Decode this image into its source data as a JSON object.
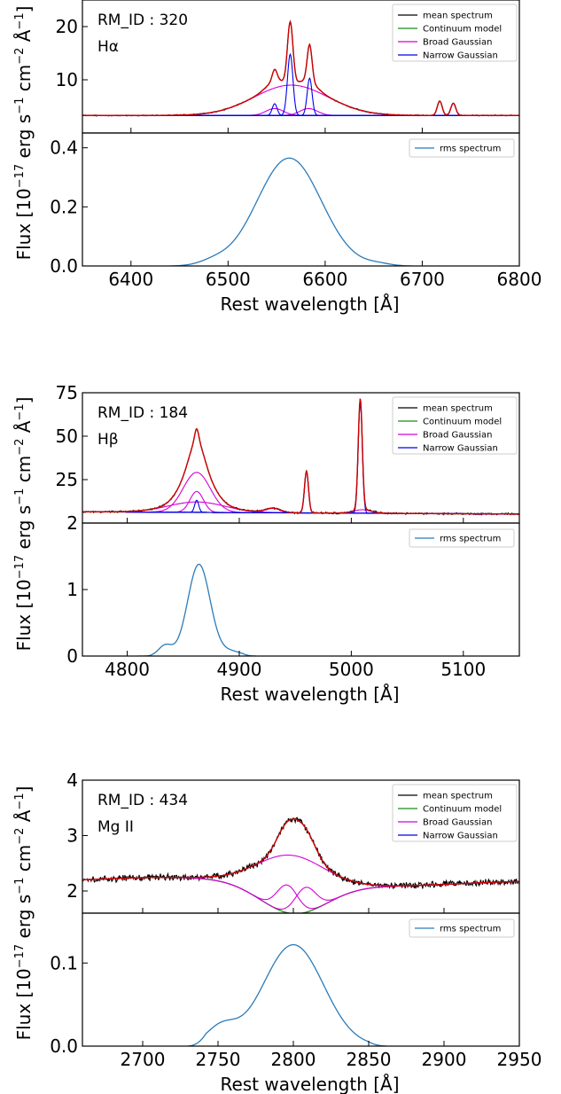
{
  "figure": {
    "ylabel": "Flux [10$^{-17}$ erg s$^{-1}$ cm$^{-2}$ Å$^{-1}$]",
    "ylabel_parts": [
      "Flux [10",
      "−17",
      " erg s",
      "−1",
      " cm",
      "−2",
      " Å",
      "−1",
      "]"
    ],
    "colors": {
      "mean": "#000000",
      "continuum": "#1a8a1a",
      "broad": "#d400d4",
      "narrow": "#0000ee",
      "total": "#cc0000",
      "rms": "#2b7bb9"
    }
  },
  "chart_data": [
    {
      "type": "line",
      "line": "Hα",
      "rm_id_label": "RM_ID : 320",
      "line_label": "Hα",
      "xlabel": "Rest wavelength [Å]",
      "xlim": [
        6350,
        6800
      ],
      "xticks": [
        6400,
        6500,
        6600,
        6700,
        6800
      ],
      "top": {
        "ylim": [
          0,
          25
        ],
        "yticks": [
          10,
          20
        ],
        "legend": [
          "mean spectrum",
          "Continuum model",
          "Broad Gaussian",
          "Narrow Gaussian"
        ],
        "legend_position": "top-right",
        "continuum": [
          [
            6350,
            3.3
          ],
          [
            6800,
            3.3
          ]
        ],
        "broad_gaussians": [
          {
            "center": 6565,
            "amplitude": 5.7,
            "sigma": 38
          },
          {
            "center": 6548,
            "amplitude": 1.3,
            "sigma": 9
          },
          {
            "center": 6583,
            "amplitude": 1.3,
            "sigma": 9
          }
        ],
        "narrow_gaussians": [
          {
            "center": 6548,
            "amplitude": 2.2,
            "sigma": 2.5
          },
          {
            "center": 6564,
            "amplitude": 11.5,
            "sigma": 2.8
          },
          {
            "center": 6584,
            "amplitude": 7.0,
            "sigma": 2.5
          },
          {
            "center": 6718,
            "amplitude": 2.7,
            "sigma": 2.5
          },
          {
            "center": 6732,
            "amplitude": 2.3,
            "sigma": 2.5
          }
        ]
      },
      "bottom": {
        "ylim": [
          0,
          0.45
        ],
        "yticks": [
          0.0,
          0.2,
          0.4
        ],
        "ytick_labels": [
          "0.0",
          "0.2",
          "0.4"
        ],
        "legend": [
          "rms spectrum"
        ],
        "legend_position": "top-right",
        "rms_components": [
          {
            "center": 6563,
            "amplitude": 0.365,
            "sigma": 33
          },
          {
            "center": 6485,
            "amplitude": 0.012,
            "sigma": 14
          },
          {
            "center": 6655,
            "amplitude": 0.006,
            "sigma": 12
          }
        ],
        "rms_range": [
          6440,
          6690
        ]
      }
    },
    {
      "type": "line",
      "line": "Hβ",
      "rm_id_label": "RM_ID : 184",
      "line_label": "Hβ",
      "xlabel": "Rest wavelength [Å]",
      "xlim": [
        4760,
        5150
      ],
      "xticks": [
        4800,
        4900,
        5000,
        5100
      ],
      "top": {
        "ylim": [
          0,
          75
        ],
        "yticks": [
          25,
          50,
          75
        ],
        "legend": [
          "mean spectrum",
          "Continuum model",
          "Broad Gaussian",
          "Narrow Gaussian"
        ],
        "legend_position": "top-right",
        "continuum": [
          [
            4760,
            6.5
          ],
          [
            5150,
            5.2
          ]
        ],
        "broad_gaussians": [
          {
            "center": 4862,
            "amplitude": 23.0,
            "sigma": 12
          },
          {
            "center": 4862,
            "amplitude": 12.0,
            "sigma": 6
          },
          {
            "center": 4862,
            "amplitude": 6.0,
            "sigma": 25
          },
          {
            "center": 4930,
            "amplitude": 2.5,
            "sigma": 7
          },
          {
            "center": 5010,
            "amplitude": 2.0,
            "sigma": 8
          }
        ],
        "narrow_gaussians": [
          {
            "center": 4862,
            "amplitude": 7.0,
            "sigma": 1.8
          },
          {
            "center": 4960,
            "amplitude": 24.0,
            "sigma": 1.8
          },
          {
            "center": 5008,
            "amplitude": 64.0,
            "sigma": 1.8
          }
        ]
      },
      "bottom": {
        "ylim": [
          0,
          2
        ],
        "yticks": [
          0,
          1,
          2
        ],
        "ytick_labels": [
          "0",
          "1",
          "2"
        ],
        "legend": [
          "rms spectrum"
        ],
        "legend_position": "top-right",
        "rms_components": [
          {
            "center": 4864,
            "amplitude": 1.38,
            "sigma": 10
          },
          {
            "center": 4834,
            "amplitude": 0.16,
            "sigma": 6
          },
          {
            "center": 4893,
            "amplitude": 0.07,
            "sigma": 9
          }
        ],
        "rms_range": [
          4810,
          4915
        ]
      }
    },
    {
      "type": "line",
      "line": "Mg II",
      "rm_id_label": "RM_ID : 434",
      "line_label": "Mg II",
      "xlabel": "Rest wavelength [Å]",
      "xlim": [
        2660,
        2950
      ],
      "xticks": [
        2700,
        2750,
        2800,
        2850,
        2900,
        2950
      ],
      "top": {
        "ylim": [
          1.6,
          4.0
        ],
        "yticks": [
          2,
          3,
          4
        ],
        "legend": [
          "mean spectrum",
          "Continuum model",
          "Broad Gaussian",
          "Narrow Gaussian"
        ],
        "legend_position": "top-right",
        "continuum_components": {
          "base": 2.2,
          "slope": -0.0009,
          "dip_center": 2800,
          "dip_amp": 0.55,
          "dip_sigma": 22
        },
        "broad_gaussians": [
          {
            "center": 2799,
            "amplitude": 1.05,
            "sigma": 22
          },
          {
            "center": 2796,
            "amplitude": 0.5,
            "sigma": 7
          },
          {
            "center": 2808,
            "amplitude": 0.45,
            "sigma": 7
          }
        ],
        "narrow_gaussians": []
      },
      "bottom": {
        "ylim": [
          0,
          0.16
        ],
        "yticks": [
          0.0,
          0.1
        ],
        "ytick_labels": [
          "0.0",
          "0.1"
        ],
        "legend": [
          "rms spectrum"
        ],
        "legend_position": "top-right",
        "rms_components": [
          {
            "center": 2800,
            "amplitude": 0.122,
            "sigma": 20
          },
          {
            "center": 2752,
            "amplitude": 0.022,
            "sigma": 10
          }
        ],
        "rms_range": [
          2730,
          2862
        ]
      }
    }
  ]
}
